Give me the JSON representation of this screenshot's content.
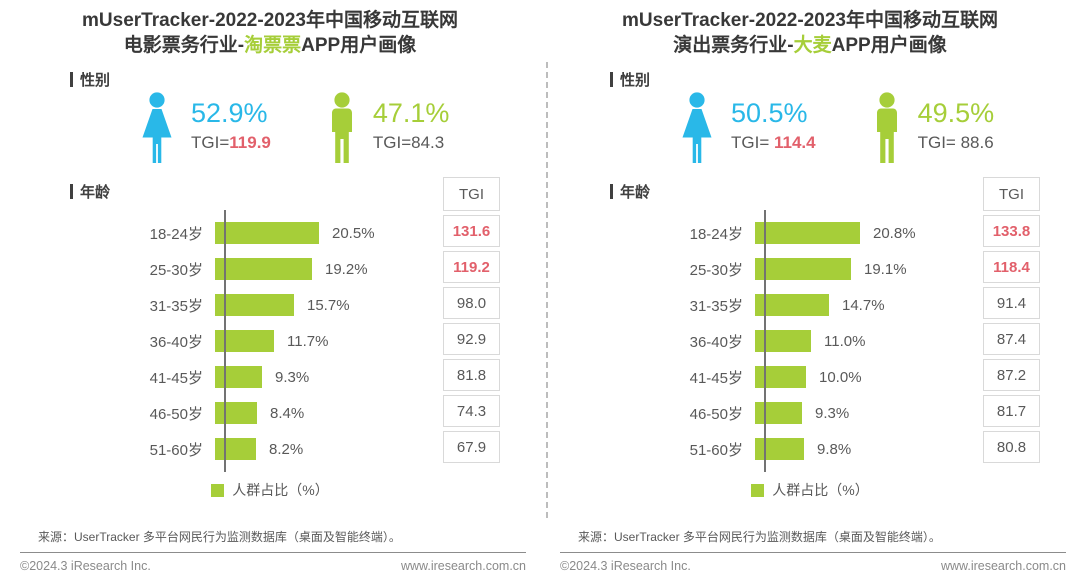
{
  "colors": {
    "green": "#a6ce39",
    "blue": "#29b8e8",
    "red": "#e2606b",
    "dark_text": "#383838",
    "gray_text": "#595959",
    "footer_gray": "#8a8a8a",
    "cell_border": "#d9d9d9"
  },
  "panels": [
    {
      "title_line1": "mUserTracker-2022-2023年中国移动互联网",
      "title_line2_prefix": "电影票务行业-",
      "title_line2_highlight": "淘票票",
      "title_line2_suffix": "APP用户画像",
      "gender_section_label": "性别",
      "age_section_label": "年龄",
      "female": {
        "pct": "52.9%",
        "tgi_label": "TGI=",
        "tgi_value": "119.9"
      },
      "male": {
        "pct": "47.1%",
        "tgi_label": "TGI=",
        "tgi_value": "84.3"
      },
      "tgi_header": "TGI",
      "age_rows": [
        {
          "label": "18-24岁",
          "value": 20.5,
          "value_label": "20.5%",
          "tgi": 131.6,
          "tgi_text": "131.6"
        },
        {
          "label": "25-30岁",
          "value": 19.2,
          "value_label": "19.2%",
          "tgi": 119.2,
          "tgi_text": "119.2"
        },
        {
          "label": "31-35岁",
          "value": 15.7,
          "value_label": "15.7%",
          "tgi": 98.0,
          "tgi_text": "98.0"
        },
        {
          "label": "36-40岁",
          "value": 11.7,
          "value_label": "11.7%",
          "tgi": 92.9,
          "tgi_text": "92.9"
        },
        {
          "label": "41-45岁",
          "value": 9.3,
          "value_label": "9.3%",
          "tgi": 81.8,
          "tgi_text": "81.8"
        },
        {
          "label": "46-50岁",
          "value": 8.4,
          "value_label": "8.4%",
          "tgi": 74.3,
          "tgi_text": "74.3"
        },
        {
          "label": "51-60岁",
          "value": 8.2,
          "value_label": "8.2%",
          "tgi": 67.9,
          "tgi_text": "67.9"
        }
      ],
      "legend": "人群占比（%）",
      "source": "来源：UserTracker 多平台网民行为监测数据库（桌面及智能终端）。",
      "footer_left": "©2024.3 iResearch Inc.",
      "footer_right": "www.iresearch.com.cn"
    },
    {
      "title_line1": "mUserTracker-2022-2023年中国移动互联网",
      "title_line2_prefix": "演出票务行业-",
      "title_line2_highlight": "大麦",
      "title_line2_suffix": "APP用户画像",
      "gender_section_label": "性别",
      "age_section_label": "年龄",
      "female": {
        "pct": "50.5%",
        "tgi_label": "TGI= ",
        "tgi_value": "114.4"
      },
      "male": {
        "pct": "49.5%",
        "tgi_label": "TGI= ",
        "tgi_value": "88.6"
      },
      "tgi_header": "TGI",
      "age_rows": [
        {
          "label": "18-24岁",
          "value": 20.8,
          "value_label": "20.8%",
          "tgi": 133.8,
          "tgi_text": "133.8"
        },
        {
          "label": "25-30岁",
          "value": 19.1,
          "value_label": "19.1%",
          "tgi": 118.4,
          "tgi_text": "118.4"
        },
        {
          "label": "31-35岁",
          "value": 14.7,
          "value_label": "14.7%",
          "tgi": 91.4,
          "tgi_text": "91.4"
        },
        {
          "label": "36-40岁",
          "value": 11.0,
          "value_label": "11.0%",
          "tgi": 87.4,
          "tgi_text": "87.4"
        },
        {
          "label": "41-45岁",
          "value": 10.0,
          "value_label": "10.0%",
          "tgi": 87.2,
          "tgi_text": "87.2"
        },
        {
          "label": "46-50岁",
          "value": 9.3,
          "value_label": "9.3%",
          "tgi": 81.7,
          "tgi_text": "81.7"
        },
        {
          "label": "51-60岁",
          "value": 9.8,
          "value_label": "9.8%",
          "tgi": 80.8,
          "tgi_text": "80.8"
        }
      ],
      "legend": "人群占比（%）",
      "source": "来源：UserTracker 多平台网民行为监测数据库（桌面及智能终端）。",
      "footer_left": "©2024.3 iResearch Inc.",
      "footer_right": "www.iresearch.com.cn"
    }
  ],
  "chart_data": [
    {
      "type": "bar",
      "orientation": "horizontal",
      "title": "mUserTracker-2022-2023年中国移动互联网电影票务行业-淘票票APP用户画像",
      "categories": [
        "18-24岁",
        "25-30岁",
        "31-35岁",
        "36-40岁",
        "41-45岁",
        "46-50岁",
        "51-60岁"
      ],
      "series": [
        {
          "name": "人群占比（%）",
          "values": [
            20.5,
            19.2,
            15.7,
            11.7,
            9.3,
            8.4,
            8.2
          ]
        },
        {
          "name": "TGI",
          "values": [
            131.6,
            119.2,
            98.0,
            92.9,
            81.8,
            74.3,
            67.9
          ]
        }
      ],
      "gender": {
        "female_pct": 52.9,
        "female_tgi": 119.9,
        "male_pct": 47.1,
        "male_tgi": 84.3
      },
      "legend": [
        "人群占比（%）"
      ],
      "xlim": [
        0,
        22
      ],
      "bar_color": "#a6ce39",
      "grid": false,
      "legend_position": "bottom"
    },
    {
      "type": "bar",
      "orientation": "horizontal",
      "title": "mUserTracker-2022-2023年中国移动互联网演出票务行业-大麦APP用户画像",
      "categories": [
        "18-24岁",
        "25-30岁",
        "31-35岁",
        "36-40岁",
        "41-45岁",
        "46-50岁",
        "51-60岁"
      ],
      "series": [
        {
          "name": "人群占比（%）",
          "values": [
            20.8,
            19.1,
            14.7,
            11.0,
            10.0,
            9.3,
            9.8
          ]
        },
        {
          "name": "TGI",
          "values": [
            133.8,
            118.4,
            91.4,
            87.4,
            87.2,
            81.7,
            80.8
          ]
        }
      ],
      "gender": {
        "female_pct": 50.5,
        "female_tgi": 114.4,
        "male_pct": 49.5,
        "male_tgi": 88.6
      },
      "legend": [
        "人群占比（%）"
      ],
      "xlim": [
        0,
        22
      ],
      "bar_color": "#a6ce39",
      "grid": false,
      "legend_position": "bottom"
    }
  ]
}
